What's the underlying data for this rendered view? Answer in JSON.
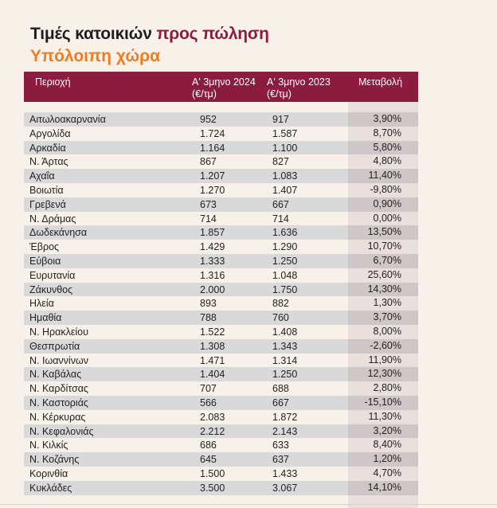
{
  "title": {
    "part1": "Τιμές κατοικιών ",
    "part2": "προς πώληση",
    "subtitle": "Υπόλοιπη χώρα"
  },
  "colors": {
    "header_bg": "#8c1c3f",
    "title_accent": "#8c1c3f",
    "subtitle": "#ee7d22",
    "stripe": "#d9d9d9",
    "change_col": "#e9dfdc"
  },
  "table": {
    "headers": {
      "region": "Περιοχή",
      "q1_2024_line1": "Α' 3μηνο 2024",
      "q1_2024_line2": "(€/τμ)",
      "q1_2023_line1": "Α' 3μηνο 2023",
      "q1_2023_line2": "(€/τμ)",
      "change": "Μεταβολή"
    },
    "rows": [
      {
        "region": "Αιτωλοακαρνανία",
        "v2024": "952",
        "v2023": "917",
        "change": "3,90%"
      },
      {
        "region": "Αργολίδα",
        "v2024": "1.724",
        "v2023": "1.587",
        "change": "8,70%"
      },
      {
        "region": "Αρκαδία",
        "v2024": "1.164",
        "v2023": "1.100",
        "change": "5,80%"
      },
      {
        "region": "Ν. Άρτας",
        "v2024": "867",
        "v2023": "827",
        "change": "4,80%"
      },
      {
        "region": "Αχαΐα",
        "v2024": "1.207",
        "v2023": "1.083",
        "change": "11,40%"
      },
      {
        "region": "Βοιωτία",
        "v2024": "1.270",
        "v2023": "1.407",
        "change": "-9,80%"
      },
      {
        "region": "Γρεβενά",
        "v2024": "673",
        "v2023": "667",
        "change": "0,90%"
      },
      {
        "region": "Ν. Δράμας",
        "v2024": "714",
        "v2023": "714",
        "change": "0,00%"
      },
      {
        "region": "Δωδεκάνησα",
        "v2024": "1.857",
        "v2023": "1.636",
        "change": "13,50%"
      },
      {
        "region": "Έβρος",
        "v2024": "1.429",
        "v2023": "1.290",
        "change": "10,70%"
      },
      {
        "region": "Εύβοια",
        "v2024": "1.333",
        "v2023": "1.250",
        "change": "6,70%"
      },
      {
        "region": "Ευρυτανία",
        "v2024": "1.316",
        "v2023": "1.048",
        "change": "25,60%"
      },
      {
        "region": "Ζάκυνθος",
        "v2024": "2.000",
        "v2023": "1.750",
        "change": "14,30%"
      },
      {
        "region": "Ηλεία",
        "v2024": "893",
        "v2023": "882",
        "change": "1,30%"
      },
      {
        "region": "Ημαθία",
        "v2024": "788",
        "v2023": "760",
        "change": "3,70%"
      },
      {
        "region": "Ν. Ηρακλείου",
        "v2024": "1.522",
        "v2023": "1.408",
        "change": "8,00%"
      },
      {
        "region": "Θεσπρωτία",
        "v2024": "1.308",
        "v2023": "1.343",
        "change": "-2,60%"
      },
      {
        "region": "Ν. Ιωαννίνων",
        "v2024": "1.471",
        "v2023": "1.314",
        "change": "11,90%"
      },
      {
        "region": "Ν. Καβάλας",
        "v2024": "1.404",
        "v2023": "1.250",
        "change": "12,30%"
      },
      {
        "region": "Ν. Καρδίτσας",
        "v2024": "707",
        "v2023": "688",
        "change": "2,80%"
      },
      {
        "region": "Ν. Καστοριάς",
        "v2024": "566",
        "v2023": "667",
        "change": "-15,10%"
      },
      {
        "region": "Ν. Κέρκυρας",
        "v2024": "2.083",
        "v2023": "1.872",
        "change": "11,30%"
      },
      {
        "region": "Ν. Κεφαλονιάς",
        "v2024": "2.212",
        "v2023": "2.143",
        "change": "3,20%"
      },
      {
        "region": "Ν. Κιλκίς",
        "v2024": "686",
        "v2023": "633",
        "change": "8,40%"
      },
      {
        "region": "Ν. Κοζάνης",
        "v2024": "645",
        "v2023": "637",
        "change": "1,20%"
      },
      {
        "region": "Κορινθία",
        "v2024": "1.500",
        "v2023": "1.433",
        "change": "4,70%"
      },
      {
        "region": "Κυκλάδες",
        "v2024": "3.500",
        "v2023": "3.067",
        "change": "14,10%"
      }
    ]
  }
}
